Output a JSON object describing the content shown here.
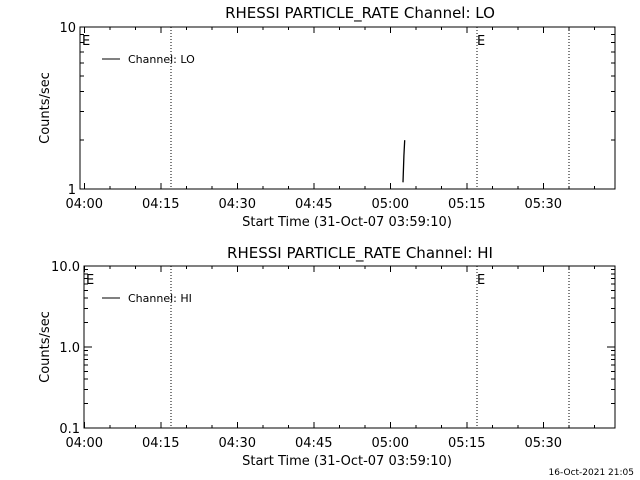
{
  "footer_date": "16-Oct-2021 21:05",
  "chart_data": [
    {
      "type": "line",
      "title": "RHESSI PARTICLE_RATE Channel: LO",
      "xlabel": "Start Time (31-Oct-07 03:59:10)",
      "ylabel": "Counts/sec",
      "yscale": "log",
      "ylim": [
        1,
        10
      ],
      "xlim_minutes_label": [
        "04:00",
        "05:45"
      ],
      "x_ticks": [
        "04:00",
        "04:15",
        "04:30",
        "04:45",
        "05:00",
        "05:15",
        "05:30"
      ],
      "y_ticks": [
        "1",
        "10"
      ],
      "legend": {
        "placement": "top-left",
        "entries": [
          "Channel: LO"
        ]
      },
      "event_lines": [
        {
          "time": "03:59",
          "label": "E"
        },
        {
          "time": "04:17",
          "label": ""
        },
        {
          "time": "05:17",
          "label": "E"
        },
        {
          "time": "05:35",
          "label": ""
        }
      ],
      "series": [
        {
          "name": "Channel: LO",
          "x": [
            "05:02:30",
            "05:02:40",
            "05:02:50"
          ],
          "y": [
            1.1,
            1.6,
            2.0
          ]
        }
      ]
    },
    {
      "type": "line",
      "title": "RHESSI PARTICLE_RATE Channel: HI",
      "xlabel": "Start Time (31-Oct-07 03:59:10)",
      "ylabel": "Counts/sec",
      "yscale": "log",
      "ylim": [
        0.1,
        10
      ],
      "x_ticks": [
        "04:00",
        "04:15",
        "04:30",
        "04:45",
        "05:00",
        "05:15",
        "05:30"
      ],
      "y_ticks": [
        "0.1",
        "1.0",
        "10.0"
      ],
      "legend": {
        "placement": "top-left",
        "entries": [
          "Channel: HI"
        ]
      },
      "event_lines": [
        {
          "time": "03:59",
          "label": "E"
        },
        {
          "time": "04:17",
          "label": ""
        },
        {
          "time": "05:17",
          "label": "E"
        },
        {
          "time": "05:35",
          "label": ""
        }
      ],
      "series": [
        {
          "name": "Channel: HI",
          "x": [],
          "y": []
        }
      ]
    }
  ]
}
